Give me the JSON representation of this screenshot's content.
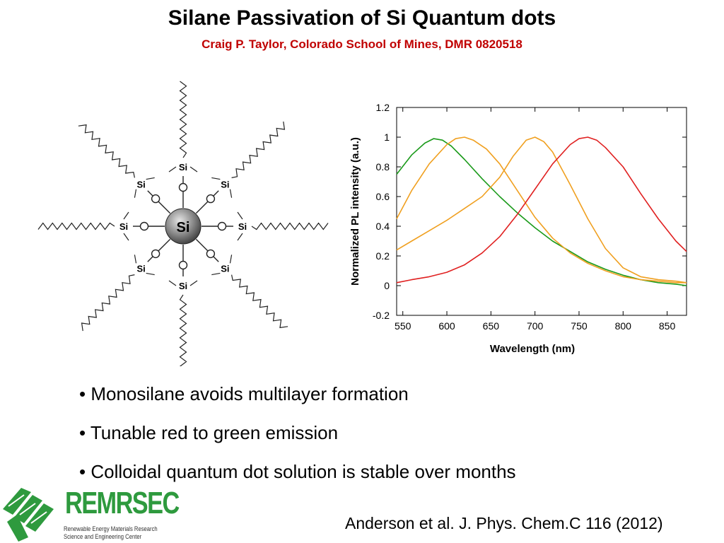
{
  "header": {
    "title": "Silane Passivation of Si Quantum dots",
    "subtitle": "Craig P. Taylor, Colorado School of Mines, DMR 0820518"
  },
  "molecule": {
    "center_label": "Si",
    "arm_label": "Si"
  },
  "chart_data": {
    "type": "line",
    "title": "",
    "xlabel": "Wavelength (nm)",
    "ylabel": "Normalized PL intensity (a.u.)",
    "xlim": [
      543,
      872
    ],
    "ylim": [
      -0.2,
      1.2
    ],
    "x_ticks": [
      550,
      600,
      650,
      700,
      750,
      800,
      850
    ],
    "y_ticks": [
      -0.2,
      0,
      0.2,
      0.4,
      0.6,
      0.8,
      1,
      1.2
    ],
    "y_tick_labels": [
      "-0.2",
      "0",
      "0.2",
      "0.4",
      "0.6",
      "0.8",
      "1",
      "1.2"
    ],
    "grid": false,
    "series": [
      {
        "color": "#1a9a1a",
        "x": [
          543,
          560,
          575,
          585,
          595,
          605,
          620,
          640,
          660,
          680,
          700,
          720,
          740,
          760,
          780,
          800,
          820,
          840,
          860,
          872
        ],
        "y": [
          0.75,
          0.88,
          0.96,
          0.99,
          0.98,
          0.94,
          0.85,
          0.72,
          0.6,
          0.49,
          0.39,
          0.3,
          0.23,
          0.16,
          0.11,
          0.07,
          0.04,
          0.02,
          0.01,
          0.0
        ]
      },
      {
        "color": "#f0a020",
        "x": [
          543,
          560,
          580,
          600,
          610,
          620,
          630,
          645,
          660,
          680,
          700,
          720,
          740,
          760,
          780,
          800,
          820,
          840,
          860,
          872
        ],
        "y": [
          0.45,
          0.64,
          0.82,
          0.95,
          0.99,
          1.0,
          0.98,
          0.92,
          0.82,
          0.64,
          0.46,
          0.32,
          0.22,
          0.15,
          0.1,
          0.06,
          0.04,
          0.03,
          0.02,
          0.02
        ]
      },
      {
        "color": "#f0a020",
        "x": [
          543,
          560,
          580,
          600,
          620,
          640,
          660,
          675,
          690,
          700,
          710,
          720,
          740,
          760,
          780,
          800,
          820,
          840,
          860,
          872
        ],
        "y": [
          0.24,
          0.3,
          0.37,
          0.44,
          0.52,
          0.6,
          0.73,
          0.87,
          0.98,
          1.0,
          0.97,
          0.9,
          0.68,
          0.45,
          0.25,
          0.12,
          0.06,
          0.04,
          0.03,
          0.02
        ]
      },
      {
        "color": "#e02020",
        "x": [
          543,
          560,
          580,
          600,
          620,
          640,
          660,
          680,
          700,
          720,
          740,
          750,
          760,
          770,
          780,
          800,
          820,
          840,
          860,
          872
        ],
        "y": [
          0.02,
          0.04,
          0.06,
          0.09,
          0.14,
          0.22,
          0.33,
          0.48,
          0.65,
          0.82,
          0.95,
          0.99,
          1.0,
          0.98,
          0.93,
          0.8,
          0.62,
          0.45,
          0.3,
          0.23
        ]
      }
    ]
  },
  "bullets": [
    "• Monosilane avoids multilayer formation",
    "• Tunable red to green emission",
    "• Colloidal quantum dot solution is stable over months"
  ],
  "citation": "Anderson et al. J. Phys. Chem.C 116 (2012)",
  "logo": {
    "name": "REMRSEC",
    "line1": "Renewable Energy Materials Research",
    "line2": "Science and Engineering Center",
    "color": "#2e9a3e"
  }
}
